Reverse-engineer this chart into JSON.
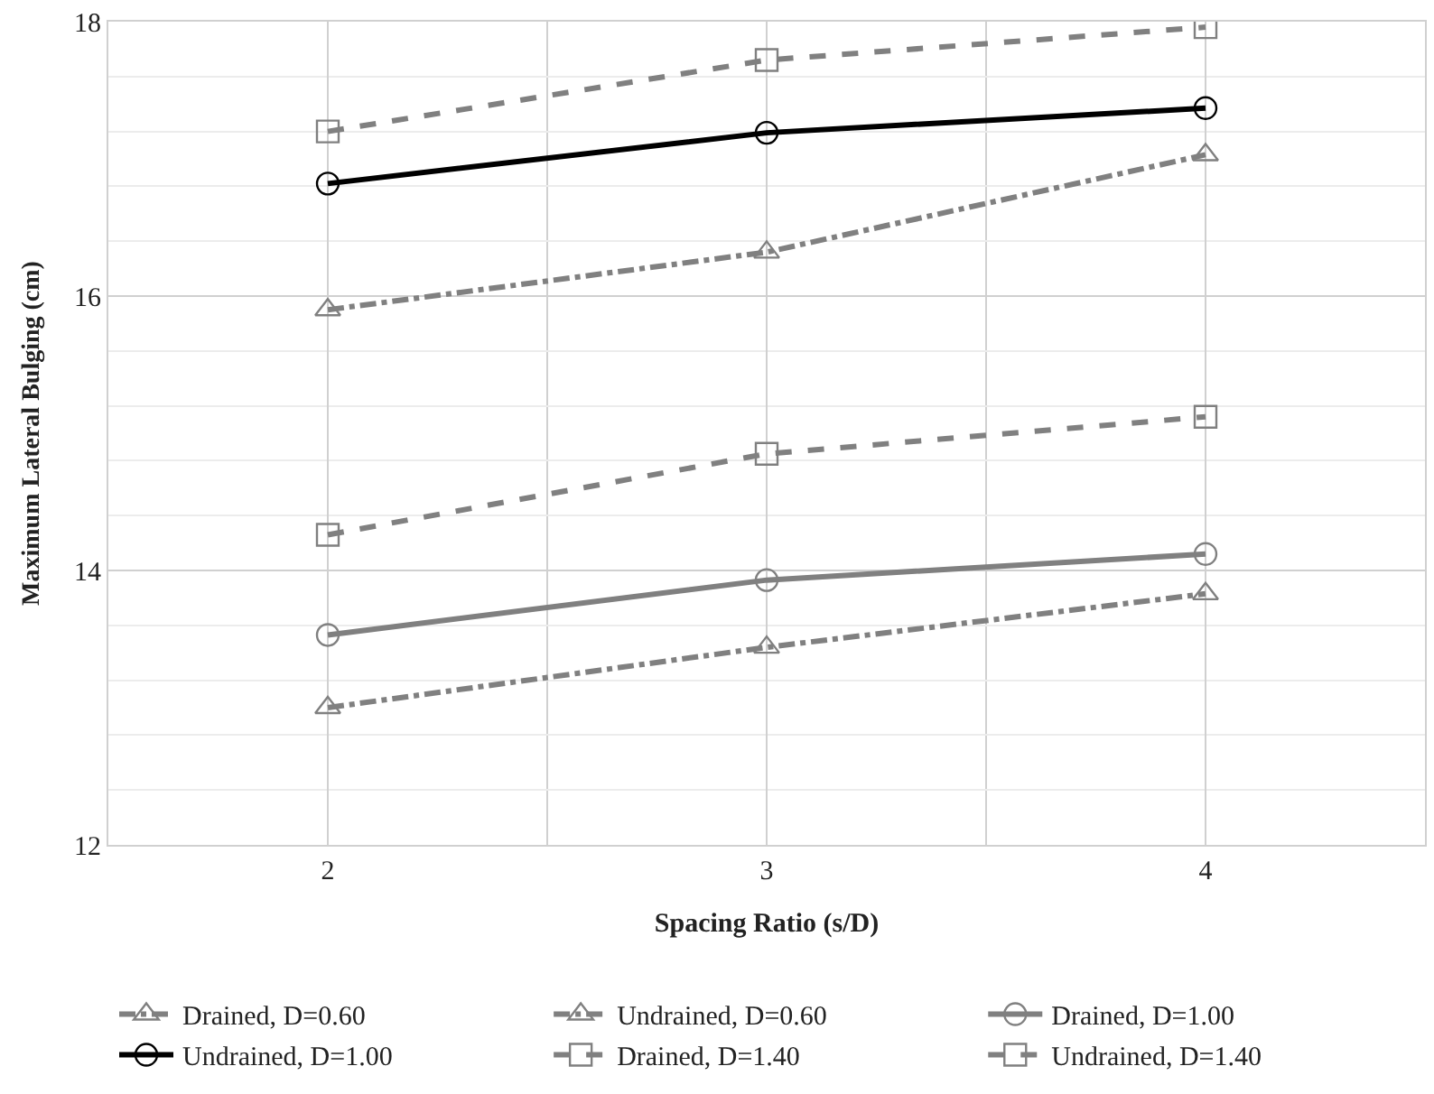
{
  "chart_data": {
    "type": "line",
    "xlabel": "Spacing Ratio (s/D)",
    "ylabel": "Maximum Lateral Bulging (cm)",
    "x": [
      2,
      3,
      4
    ],
    "xlim": [
      1.5,
      4.5
    ],
    "xticks": [
      2,
      3,
      4
    ],
    "ylim": [
      12,
      18
    ],
    "yticks": [
      12,
      14,
      16,
      18
    ],
    "grid": true,
    "legend": "bottom",
    "series": [
      {
        "name": "Drained, D=0.60",
        "color": "#808080",
        "marker": "triangle",
        "line_style": "dashdot",
        "values": [
          13.0,
          13.44,
          13.83
        ]
      },
      {
        "name": "Undrained, D=0.60",
        "color": "#808080",
        "marker": "triangle",
        "line_style": "dashdot",
        "values": [
          15.9,
          16.32,
          17.03
        ]
      },
      {
        "name": "Drained, D=1.00",
        "color": "#808080",
        "marker": "circle",
        "line_style": "solid",
        "values": [
          13.53,
          13.93,
          14.12
        ]
      },
      {
        "name": "Undrained, D=1.00",
        "color": "#000000",
        "marker": "circle",
        "line_style": "solid",
        "values": [
          16.82,
          17.19,
          17.37
        ]
      },
      {
        "name": "Drained, D=1.40",
        "color": "#808080",
        "marker": "square",
        "line_style": "dashed",
        "values": [
          14.26,
          14.85,
          15.12
        ]
      },
      {
        "name": "Undrained, D=1.40",
        "color": "#808080",
        "marker": "square",
        "line_style": "dashed",
        "values": [
          17.2,
          17.72,
          17.96
        ]
      }
    ]
  }
}
